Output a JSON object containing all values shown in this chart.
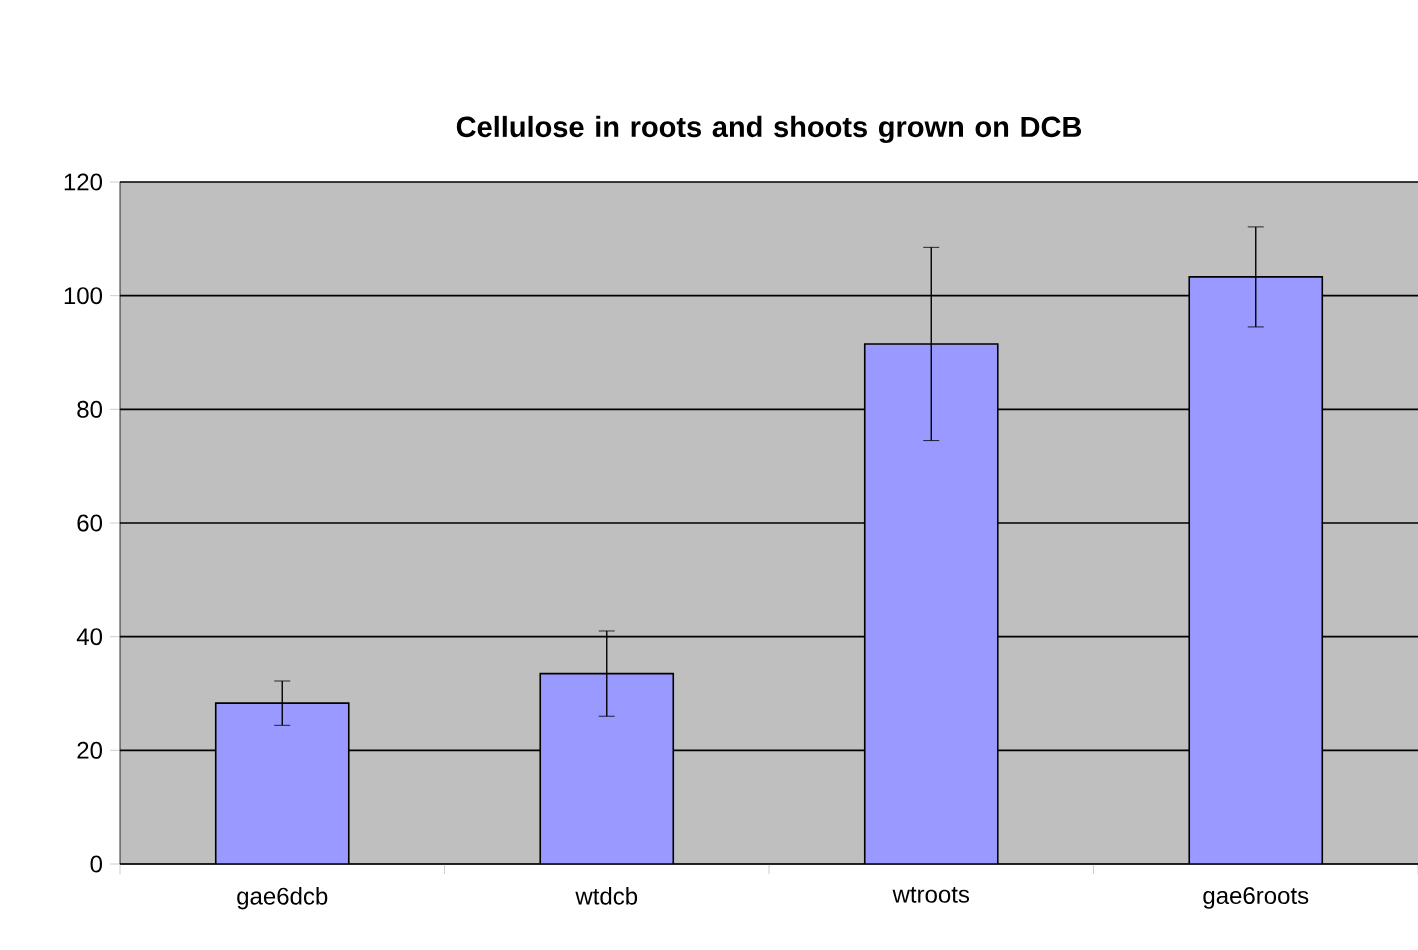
{
  "chart_data": {
    "type": "bar",
    "title": "Cellulose in roots and shoots grown on DCB",
    "categories": [
      "gae6dcb",
      "wtdcb",
      "wtroots",
      "gae6roots"
    ],
    "values": [
      28.3,
      33.5,
      91.5,
      103.3
    ],
    "errors": [
      3.9,
      7.5,
      17,
      8.8
    ],
    "color": "#9999ff",
    "ylim": [
      0,
      120
    ],
    "yticks": [
      0,
      20,
      40,
      60,
      80,
      100,
      120
    ],
    "grid": "y"
  }
}
